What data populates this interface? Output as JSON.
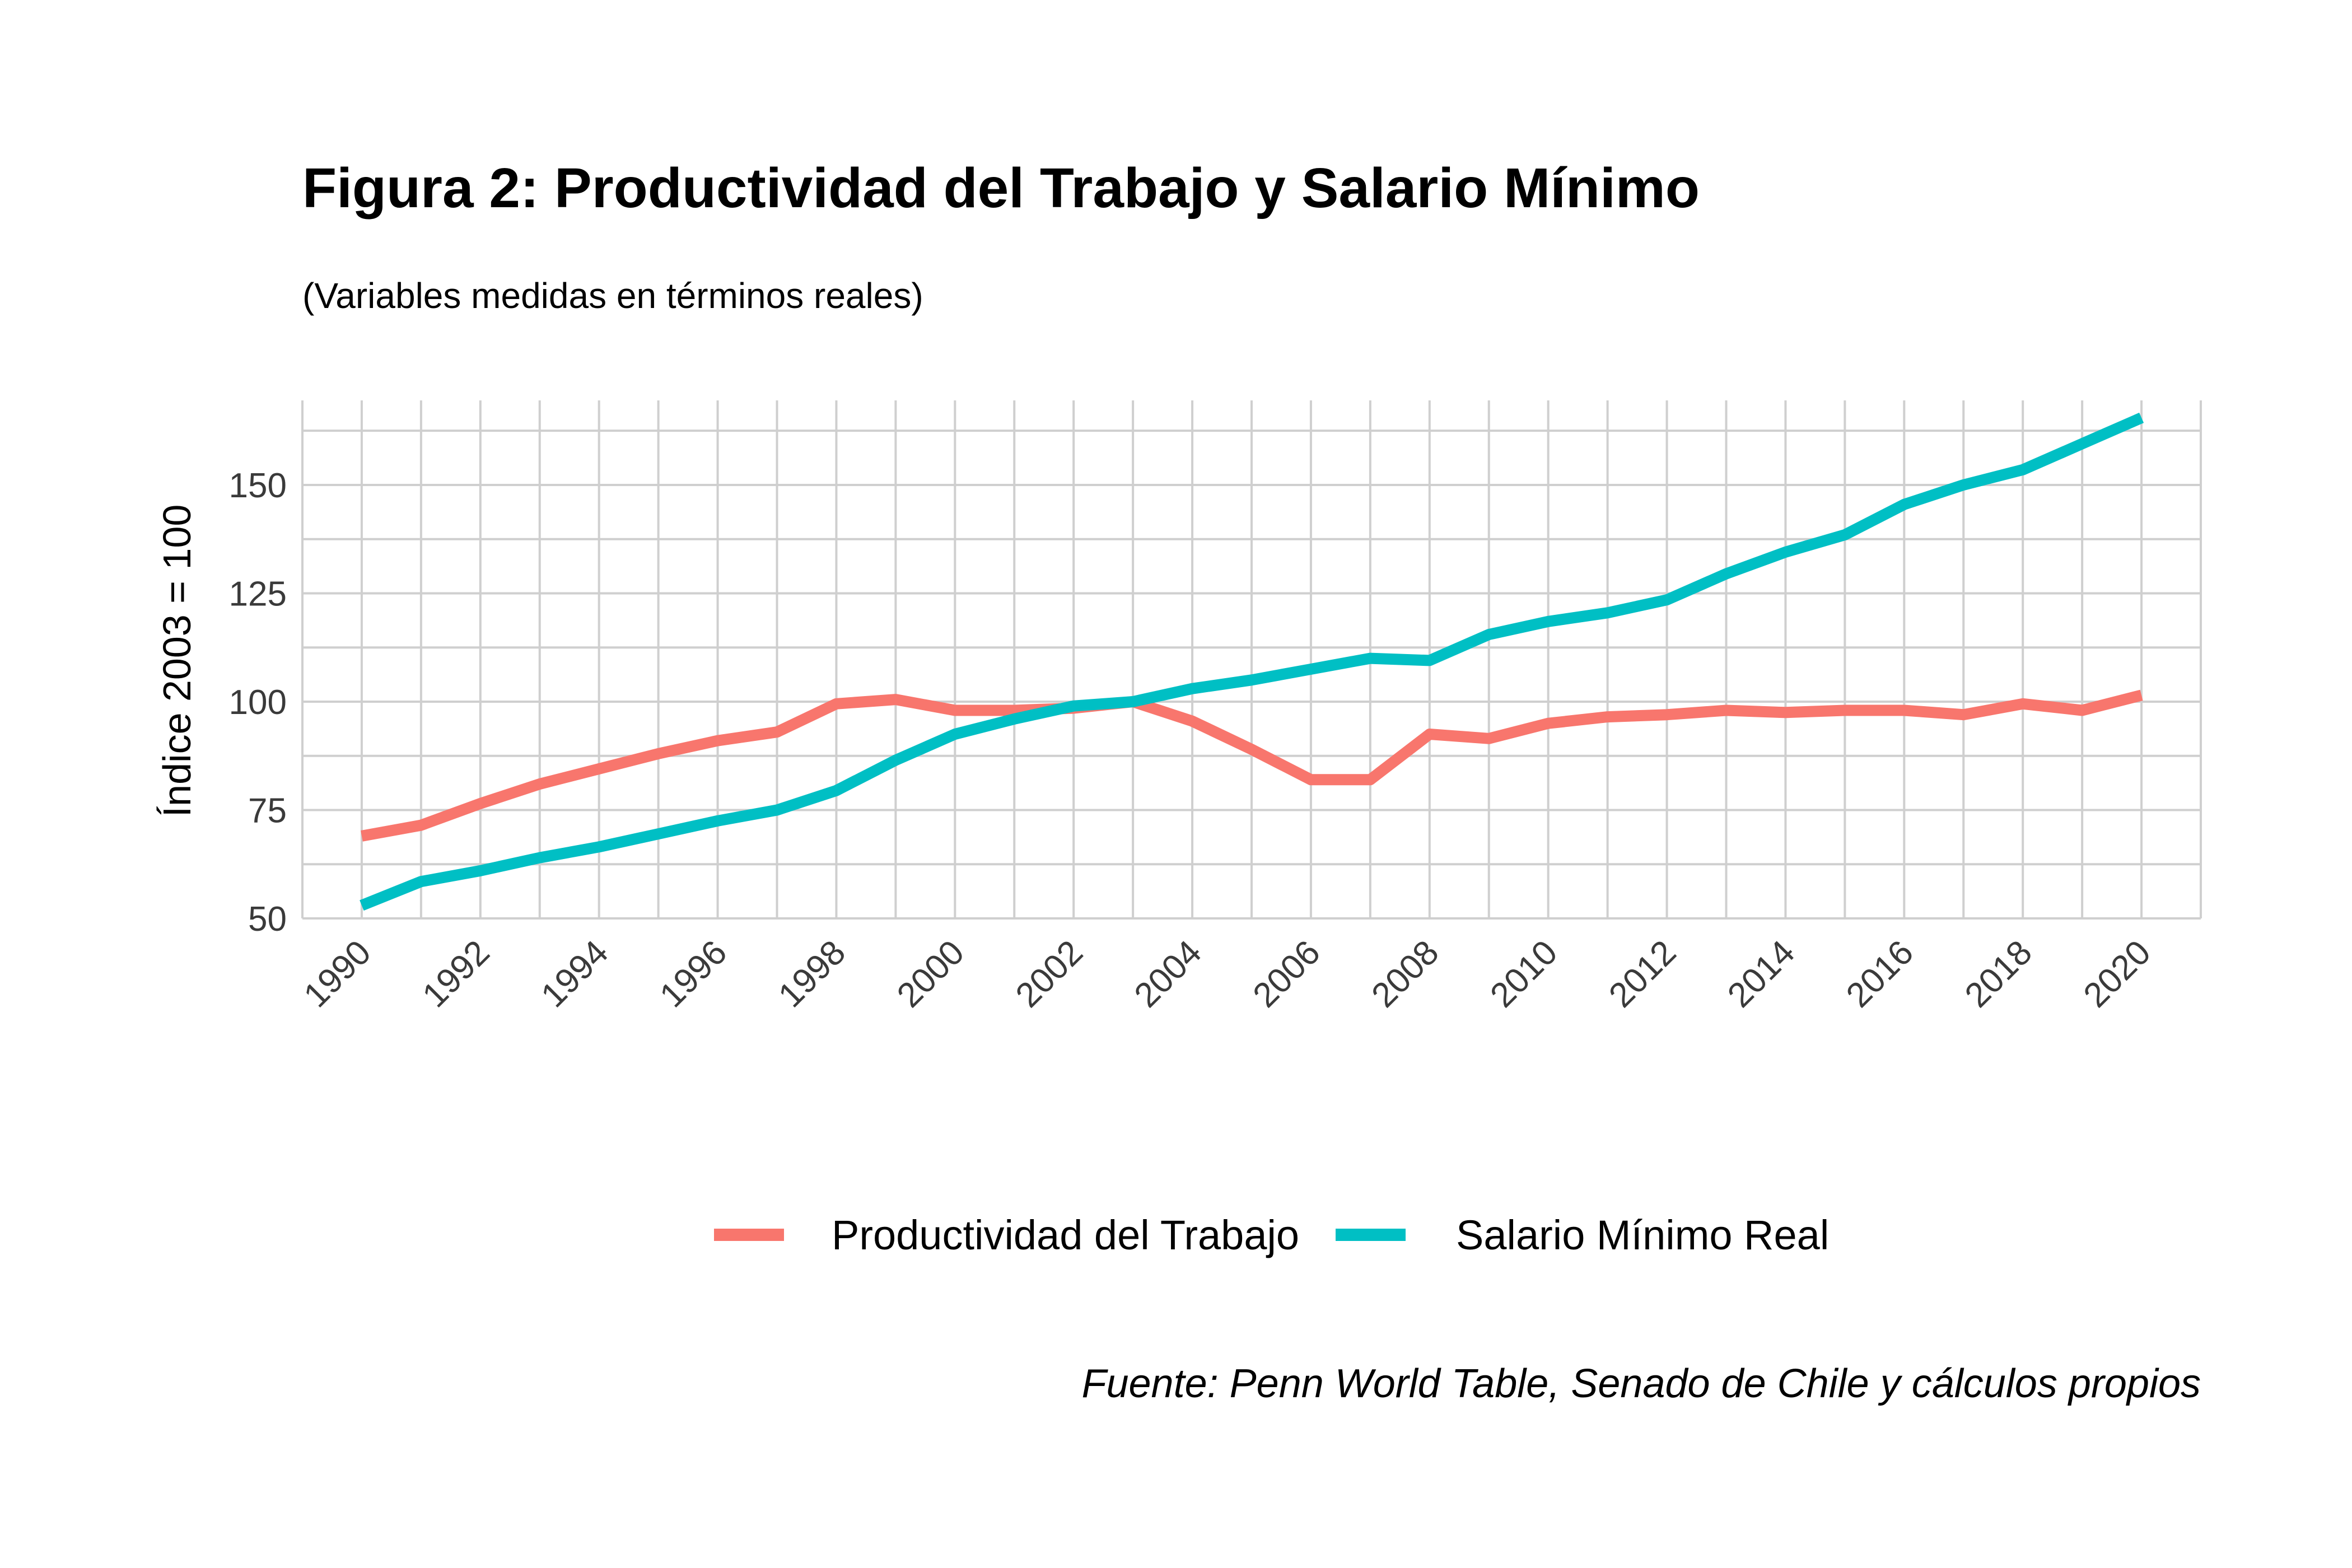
{
  "chart_data": {
    "type": "line",
    "title": "Figura 2: Productividad del Trabajo y Salario Mínimo",
    "subtitle": "(Variables medidas en términos reales)",
    "ylabel": "Índice 2003 = 100",
    "xlabel": "",
    "caption": "Fuente: Penn World Table, Senado de Chile y cálculos propios",
    "xlim": [
      1989,
      2021
    ],
    "ylim": [
      50,
      170
    ],
    "x_ticks": [
      "1990",
      "1992",
      "1994",
      "1996",
      "1998",
      "2000",
      "2002",
      "2004",
      "2006",
      "2008",
      "2010",
      "2012",
      "2014",
      "2016",
      "2018",
      "2020"
    ],
    "y_ticks": [
      "50",
      "75",
      "100",
      "125",
      "150"
    ],
    "grid": true,
    "legend_position": "bottom",
    "x": [
      1990,
      1991,
      1992,
      1993,
      1994,
      1995,
      1996,
      1997,
      1998,
      1999,
      2000,
      2001,
      2002,
      2003,
      2004,
      2005,
      2006,
      2007,
      2008,
      2009,
      2010,
      2011,
      2012,
      2013,
      2014,
      2015,
      2016,
      2017,
      2018,
      2019,
      2020
    ],
    "series": [
      {
        "name": "Productividad del Trabajo",
        "color": "#F8766D",
        "values": [
          69,
          71.5,
          76.5,
          81,
          84.5,
          88,
          91,
          93,
          99.5,
          100.5,
          98,
          98,
          98.5,
          100,
          95.5,
          89,
          82,
          82,
          92.5,
          91.5,
          95,
          96.5,
          97,
          98,
          97.5,
          98,
          98,
          97,
          99.5,
          98,
          101.5
        ]
      },
      {
        "name": "Salario Mínimo Real",
        "color": "#00BFC4",
        "values": [
          53,
          58.5,
          61,
          64,
          66.5,
          69.5,
          72.5,
          75,
          79.5,
          86.5,
          92.5,
          96,
          99,
          100,
          103,
          105,
          107.5,
          110,
          109.5,
          115.5,
          118.5,
          120.5,
          123.5,
          129.5,
          134.5,
          138.5,
          145.5,
          150,
          153.5,
          159.5,
          165.5
        ]
      }
    ]
  }
}
